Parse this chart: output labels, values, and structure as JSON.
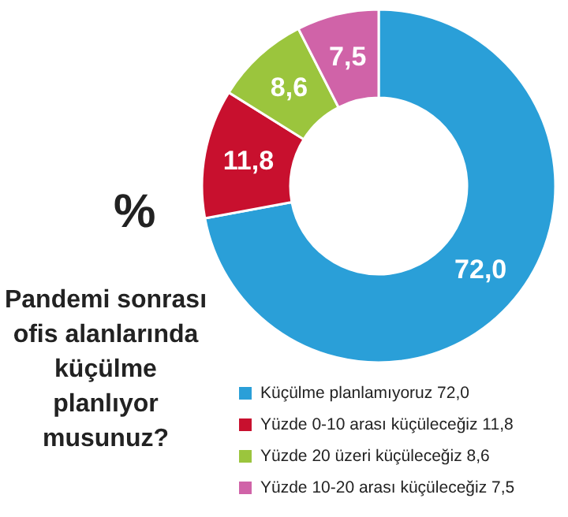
{
  "chart_data": {
    "type": "donut",
    "title": "Pandemi sonrası ofis alanlarında küçülme planlıyor musunuz?",
    "annotations": [
      "%"
    ],
    "categories": [
      "Küçülme planlamıyoruz",
      "Yüzde 0-10 arası küçüleceğiz",
      "Yüzde 20 üzeri küçüleceğiz",
      "Yüzde 10-20 arası küçüleceğiz"
    ],
    "values": [
      72.0,
      11.8,
      8.6,
      7.5
    ],
    "value_labels": [
      "72,0",
      "11,8",
      "8,6",
      "7,5"
    ],
    "colors": [
      "#2a9fd8",
      "#c8102e",
      "#9bc53d",
      "#d063a8"
    ],
    "legend": "bottom right"
  }
}
